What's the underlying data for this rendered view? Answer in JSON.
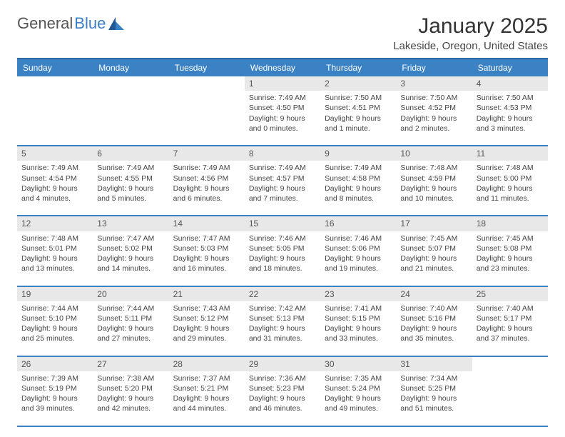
{
  "logo": {
    "text1": "General",
    "text2": "Blue"
  },
  "title": "January 2025",
  "location": "Lakeside, Oregon, United States",
  "day_headers": [
    "Sunday",
    "Monday",
    "Tuesday",
    "Wednesday",
    "Thursday",
    "Friday",
    "Saturday"
  ],
  "colors": {
    "header_bg": "#3b82c4",
    "header_border": "#2d6aa0",
    "daynum_bg": "#e8e8e8",
    "text": "#333333"
  },
  "weeks": [
    {
      "nums": [
        "",
        "",
        "",
        "1",
        "2",
        "3",
        "4"
      ],
      "cells": [
        {
          "sunrise": "",
          "sunset": "",
          "daylight": ""
        },
        {
          "sunrise": "",
          "sunset": "",
          "daylight": ""
        },
        {
          "sunrise": "",
          "sunset": "",
          "daylight": ""
        },
        {
          "sunrise": "Sunrise: 7:49 AM",
          "sunset": "Sunset: 4:50 PM",
          "daylight": "Daylight: 9 hours and 0 minutes."
        },
        {
          "sunrise": "Sunrise: 7:50 AM",
          "sunset": "Sunset: 4:51 PM",
          "daylight": "Daylight: 9 hours and 1 minute."
        },
        {
          "sunrise": "Sunrise: 7:50 AM",
          "sunset": "Sunset: 4:52 PM",
          "daylight": "Daylight: 9 hours and 2 minutes."
        },
        {
          "sunrise": "Sunrise: 7:50 AM",
          "sunset": "Sunset: 4:53 PM",
          "daylight": "Daylight: 9 hours and 3 minutes."
        }
      ]
    },
    {
      "nums": [
        "5",
        "6",
        "7",
        "8",
        "9",
        "10",
        "11"
      ],
      "cells": [
        {
          "sunrise": "Sunrise: 7:49 AM",
          "sunset": "Sunset: 4:54 PM",
          "daylight": "Daylight: 9 hours and 4 minutes."
        },
        {
          "sunrise": "Sunrise: 7:49 AM",
          "sunset": "Sunset: 4:55 PM",
          "daylight": "Daylight: 9 hours and 5 minutes."
        },
        {
          "sunrise": "Sunrise: 7:49 AM",
          "sunset": "Sunset: 4:56 PM",
          "daylight": "Daylight: 9 hours and 6 minutes."
        },
        {
          "sunrise": "Sunrise: 7:49 AM",
          "sunset": "Sunset: 4:57 PM",
          "daylight": "Daylight: 9 hours and 7 minutes."
        },
        {
          "sunrise": "Sunrise: 7:49 AM",
          "sunset": "Sunset: 4:58 PM",
          "daylight": "Daylight: 9 hours and 8 minutes."
        },
        {
          "sunrise": "Sunrise: 7:48 AM",
          "sunset": "Sunset: 4:59 PM",
          "daylight": "Daylight: 9 hours and 10 minutes."
        },
        {
          "sunrise": "Sunrise: 7:48 AM",
          "sunset": "Sunset: 5:00 PM",
          "daylight": "Daylight: 9 hours and 11 minutes."
        }
      ]
    },
    {
      "nums": [
        "12",
        "13",
        "14",
        "15",
        "16",
        "17",
        "18"
      ],
      "cells": [
        {
          "sunrise": "Sunrise: 7:48 AM",
          "sunset": "Sunset: 5:01 PM",
          "daylight": "Daylight: 9 hours and 13 minutes."
        },
        {
          "sunrise": "Sunrise: 7:47 AM",
          "sunset": "Sunset: 5:02 PM",
          "daylight": "Daylight: 9 hours and 14 minutes."
        },
        {
          "sunrise": "Sunrise: 7:47 AM",
          "sunset": "Sunset: 5:03 PM",
          "daylight": "Daylight: 9 hours and 16 minutes."
        },
        {
          "sunrise": "Sunrise: 7:46 AM",
          "sunset": "Sunset: 5:05 PM",
          "daylight": "Daylight: 9 hours and 18 minutes."
        },
        {
          "sunrise": "Sunrise: 7:46 AM",
          "sunset": "Sunset: 5:06 PM",
          "daylight": "Daylight: 9 hours and 19 minutes."
        },
        {
          "sunrise": "Sunrise: 7:45 AM",
          "sunset": "Sunset: 5:07 PM",
          "daylight": "Daylight: 9 hours and 21 minutes."
        },
        {
          "sunrise": "Sunrise: 7:45 AM",
          "sunset": "Sunset: 5:08 PM",
          "daylight": "Daylight: 9 hours and 23 minutes."
        }
      ]
    },
    {
      "nums": [
        "19",
        "20",
        "21",
        "22",
        "23",
        "24",
        "25"
      ],
      "cells": [
        {
          "sunrise": "Sunrise: 7:44 AM",
          "sunset": "Sunset: 5:10 PM",
          "daylight": "Daylight: 9 hours and 25 minutes."
        },
        {
          "sunrise": "Sunrise: 7:44 AM",
          "sunset": "Sunset: 5:11 PM",
          "daylight": "Daylight: 9 hours and 27 minutes."
        },
        {
          "sunrise": "Sunrise: 7:43 AM",
          "sunset": "Sunset: 5:12 PM",
          "daylight": "Daylight: 9 hours and 29 minutes."
        },
        {
          "sunrise": "Sunrise: 7:42 AM",
          "sunset": "Sunset: 5:13 PM",
          "daylight": "Daylight: 9 hours and 31 minutes."
        },
        {
          "sunrise": "Sunrise: 7:41 AM",
          "sunset": "Sunset: 5:15 PM",
          "daylight": "Daylight: 9 hours and 33 minutes."
        },
        {
          "sunrise": "Sunrise: 7:40 AM",
          "sunset": "Sunset: 5:16 PM",
          "daylight": "Daylight: 9 hours and 35 minutes."
        },
        {
          "sunrise": "Sunrise: 7:40 AM",
          "sunset": "Sunset: 5:17 PM",
          "daylight": "Daylight: 9 hours and 37 minutes."
        }
      ]
    },
    {
      "nums": [
        "26",
        "27",
        "28",
        "29",
        "30",
        "31",
        ""
      ],
      "cells": [
        {
          "sunrise": "Sunrise: 7:39 AM",
          "sunset": "Sunset: 5:19 PM",
          "daylight": "Daylight: 9 hours and 39 minutes."
        },
        {
          "sunrise": "Sunrise: 7:38 AM",
          "sunset": "Sunset: 5:20 PM",
          "daylight": "Daylight: 9 hours and 42 minutes."
        },
        {
          "sunrise": "Sunrise: 7:37 AM",
          "sunset": "Sunset: 5:21 PM",
          "daylight": "Daylight: 9 hours and 44 minutes."
        },
        {
          "sunrise": "Sunrise: 7:36 AM",
          "sunset": "Sunset: 5:23 PM",
          "daylight": "Daylight: 9 hours and 46 minutes."
        },
        {
          "sunrise": "Sunrise: 7:35 AM",
          "sunset": "Sunset: 5:24 PM",
          "daylight": "Daylight: 9 hours and 49 minutes."
        },
        {
          "sunrise": "Sunrise: 7:34 AM",
          "sunset": "Sunset: 5:25 PM",
          "daylight": "Daylight: 9 hours and 51 minutes."
        },
        {
          "sunrise": "",
          "sunset": "",
          "daylight": ""
        }
      ]
    }
  ]
}
